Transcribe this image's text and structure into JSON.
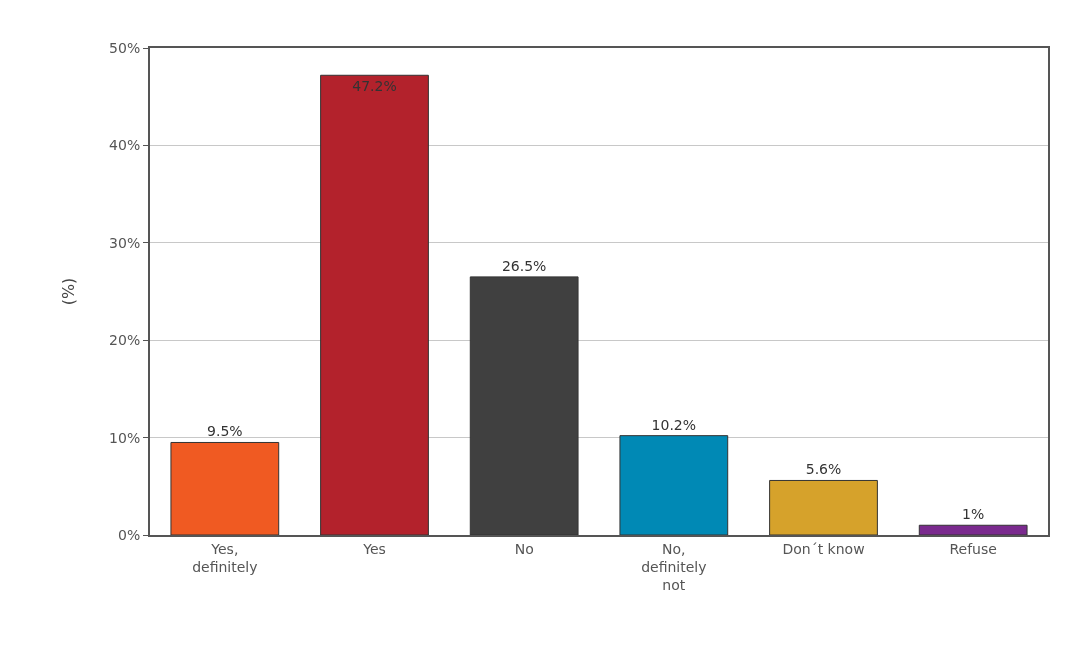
{
  "chart_data": {
    "type": "bar",
    "ylabel": "(%)",
    "categories": [
      "Yes, definitely",
      "Yes",
      "No",
      "No, definitely not",
      "Don´t know",
      "Refuse"
    ],
    "values": [
      9.5,
      47.2,
      26.5,
      10.2,
      5.6,
      1
    ],
    "colors": [
      "#f05a22",
      "#b3222c",
      "#404040",
      "#0089b5",
      "#d6a22b",
      "#7a2a8e"
    ],
    "value_labels": [
      "9.5%",
      "47.2%",
      "26.5%",
      "10.2%",
      "5.6%",
      "1%"
    ],
    "ylim": [
      0,
      50
    ],
    "yticks": [
      {
        "value": 0,
        "label": "0%"
      },
      {
        "value": 10,
        "label": "10%"
      },
      {
        "value": 20,
        "label": "20%"
      },
      {
        "value": 30,
        "label": "30%"
      },
      {
        "value": 40,
        "label": "40%"
      },
      {
        "value": 50,
        "label": "50%"
      }
    ],
    "grid": "y"
  }
}
